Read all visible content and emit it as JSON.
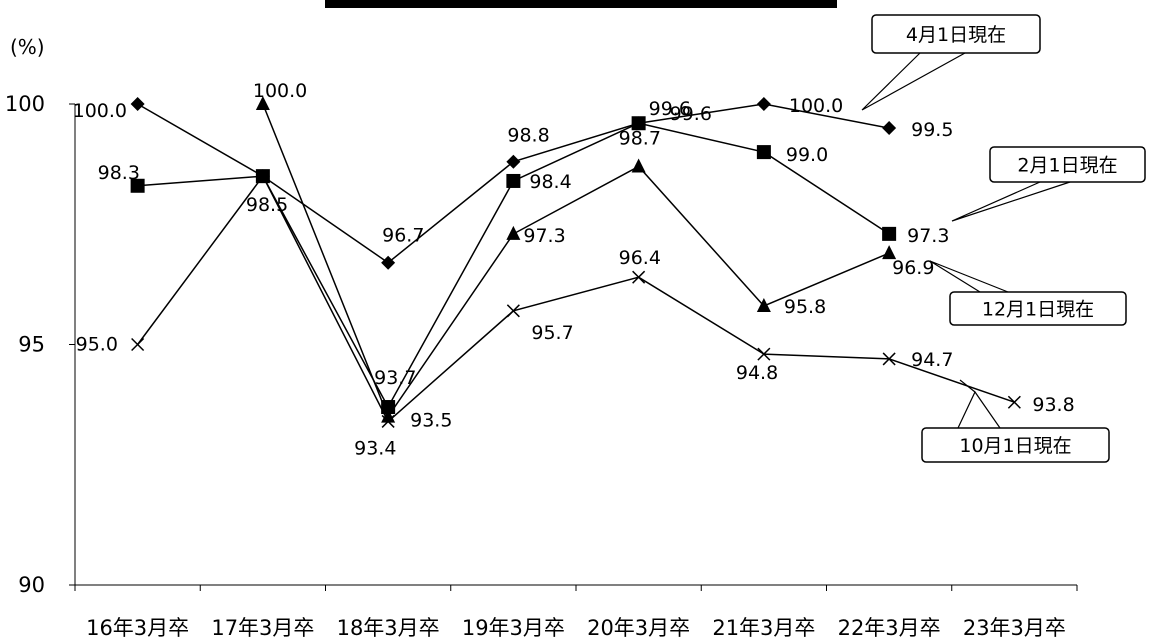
{
  "chart_data": {
    "type": "line",
    "title": "",
    "unit_label": "(%)",
    "xlabel": "",
    "ylabel": "",
    "ylim": [
      90,
      100
    ],
    "yticks": [
      90,
      95,
      100
    ],
    "grid": false,
    "categories": [
      "16年3月卒",
      "17年3月卒",
      "18年3月卒",
      "19年3月卒",
      "20年3月卒",
      "21年3月卒",
      "22年3月卒",
      "23年3月卒"
    ],
    "series": [
      {
        "name": "4月1日現在",
        "marker": "diamond",
        "values": [
          100.0,
          98.5,
          96.7,
          98.8,
          99.6,
          100.0,
          99.5,
          null
        ],
        "labels": [
          "100.0",
          "",
          "96.7",
          "98.8",
          "",
          "100.0",
          "99.5",
          ""
        ]
      },
      {
        "name": "2月1日現在",
        "marker": "square",
        "values": [
          98.3,
          98.5,
          93.7,
          98.4,
          99.6,
          99.0,
          97.3,
          null
        ],
        "labels": [
          "98.3",
          "98.5",
          "93.7",
          "98.4",
          "99.6",
          "99.0",
          "97.3",
          ""
        ]
      },
      {
        "name": "12月1日現在",
        "marker": "triangle",
        "values": [
          null,
          100.0,
          93.5,
          97.3,
          98.7,
          95.8,
          96.9,
          null
        ],
        "labels": [
          "",
          "100.0",
          "93.5",
          "97.3",
          "98.7",
          "95.8",
          "96.9",
          ""
        ]
      },
      {
        "name": "10月1日現在",
        "marker": "x",
        "values": [
          95.0,
          98.5,
          93.4,
          95.7,
          96.4,
          94.8,
          94.7,
          93.8
        ],
        "labels": [
          "95.0",
          "",
          "93.4",
          "95.7",
          "96.4",
          "94.8",
          "94.7",
          "93.8"
        ]
      }
    ],
    "extra_labels": [
      {
        "category": 4,
        "value": 99.6,
        "text": "99.6"
      }
    ]
  }
}
